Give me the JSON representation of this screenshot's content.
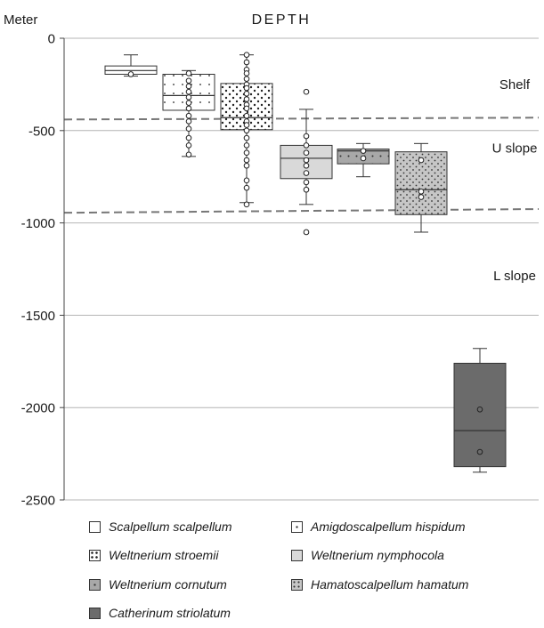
{
  "chart_data": {
    "type": "boxplot",
    "title": "DEPTH",
    "ylabel": "Meter",
    "ylim": [
      -2500,
      0
    ],
    "yticks": [
      0,
      -500,
      -1000,
      -1500,
      -2000,
      -2500
    ],
    "ytick_labels": [
      "0",
      "-500",
      "-1000",
      "-1500",
      "-2000",
      "-2500"
    ],
    "grid": true,
    "legend_position": "bottom",
    "zones": [
      {
        "label": "Shelf",
        "label_depth": -275
      },
      {
        "label": "U slope",
        "label_depth": -620
      },
      {
        "label": "L slope",
        "label_depth": -1310
      }
    ],
    "zone_boundaries": [
      {
        "start": -440,
        "end": -430
      },
      {
        "start": -945,
        "end": -925
      }
    ],
    "series": [
      {
        "name": "Scalpellum scalpellum",
        "pattern": "white",
        "whisker_low": -205,
        "q1": -195,
        "median": -175,
        "q3": -150,
        "whisker_high": -90,
        "points": [
          -195
        ]
      },
      {
        "name": "Amigdoscalpellum hispidum",
        "pattern": "sparse-dots",
        "whisker_low": -640,
        "q1": -390,
        "median": -310,
        "q3": -195,
        "whisker_high": -175,
        "points": [
          -190,
          -230,
          -260,
          -290,
          -320,
          -350,
          -380,
          -420,
          -450,
          -490,
          -540,
          -580,
          -630
        ]
      },
      {
        "name": "Weltnerium stroemii",
        "pattern": "dense-dots",
        "whisker_low": -890,
        "q1": -495,
        "median": -430,
        "q3": -245,
        "whisker_high": -90,
        "points": [
          -90,
          -130,
          -170,
          -190,
          -220,
          -250,
          -270,
          -300,
          -330,
          -360,
          -380,
          -420,
          -450,
          -470,
          -500,
          -540,
          -580,
          -620,
          -660,
          -690,
          -770,
          -810,
          -900
        ]
      },
      {
        "name": "Weltnerium nymphocola",
        "pattern": "light-gray",
        "whisker_low": -900,
        "q1": -760,
        "median": -650,
        "q3": -580,
        "whisker_high": -385,
        "points": [
          -290,
          -530,
          -580,
          -620,
          -660,
          -690,
          -730,
          -780,
          -820,
          -1050
        ]
      },
      {
        "name": "Weltnerium cornutum",
        "pattern": "gray-dots",
        "whisker_low": -750,
        "q1": -680,
        "median": -610,
        "q3": -600,
        "whisker_high": -570,
        "points": [
          -610,
          -650
        ]
      },
      {
        "name": "Hamatoscalpellum hamatum",
        "pattern": "gray-dense-dots",
        "whisker_low": -1050,
        "q1": -955,
        "median": -820,
        "q3": -615,
        "whisker_high": -570,
        "points": [
          -660,
          -830,
          -860
        ]
      },
      {
        "name": "Catherinum striolatum",
        "pattern": "dark-gray",
        "whisker_low": -2350,
        "q1": -2320,
        "median": -2125,
        "q3": -1760,
        "whisker_high": -1680,
        "points": [
          -2010,
          -2240
        ]
      }
    ]
  }
}
